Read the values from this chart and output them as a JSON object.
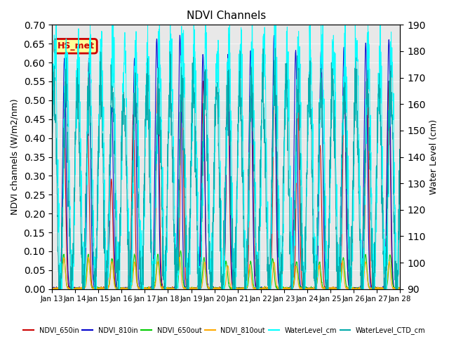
{
  "title": "NDVI Channels",
  "ylabel_left": "NDVI channels (W/m2/nm)",
  "ylabel_right": "Water Level (cm)",
  "ylim_left": [
    0.0,
    0.7
  ],
  "ylim_right": [
    90,
    190
  ],
  "yticks_left": [
    0.0,
    0.05,
    0.1,
    0.15,
    0.2,
    0.25,
    0.3,
    0.35,
    0.4,
    0.45,
    0.5,
    0.55,
    0.6,
    0.65,
    0.7
  ],
  "yticks_right": [
    90,
    100,
    110,
    120,
    130,
    140,
    150,
    160,
    170,
    180,
    190
  ],
  "xticklabels": [
    "Jan 13",
    "Jan 14",
    "Jan 15",
    "Jan 16",
    "Jan 17",
    "Jan 18",
    "Jan 19",
    "Jan 20",
    "Jan 21",
    "Jan 22",
    "Jan 23",
    "Jan 24",
    "Jan 25",
    "Jan 26",
    "Jan 27",
    "Jan 28"
  ],
  "legend_labels": [
    "NDVI_650in",
    "NDVI_810in",
    "NDVI_650out",
    "NDVI_810out",
    "WaterLevel_cm",
    "WaterLevel_CTD_cm"
  ],
  "legend_colors": [
    "#cc0000",
    "#0000cc",
    "#00cc00",
    "#ffaa00",
    "#00ffff",
    "#00aaaa"
  ],
  "annotation_text": "HS_met",
  "annotation_color": "#cc0000",
  "annotation_bg": "#ffff99",
  "plot_bg": "#e8e8e8"
}
